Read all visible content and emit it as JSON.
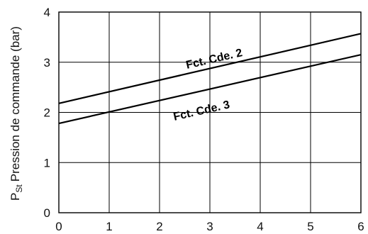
{
  "chart_data": {
    "type": "line",
    "title": "",
    "xlabel": "",
    "ylabel": {
      "symbol": "P",
      "subscript": "St",
      "text": "Pression de commande (bar)"
    },
    "xlim": [
      0,
      6
    ],
    "ylim": [
      0,
      4
    ],
    "x_ticks": [
      "0",
      "1",
      "2",
      "3",
      "4",
      "5",
      "6"
    ],
    "y_ticks": [
      "0",
      "1",
      "2",
      "3",
      "4"
    ],
    "grid": true,
    "legend": "none",
    "series": [
      {
        "name": "Fct. Cde. 2",
        "x": [
          0,
          6
        ],
        "y": [
          2.18,
          3.57
        ]
      },
      {
        "name": "Fct. Cde. 3",
        "x": [
          0,
          6
        ],
        "y": [
          1.78,
          3.15
        ]
      }
    ]
  }
}
